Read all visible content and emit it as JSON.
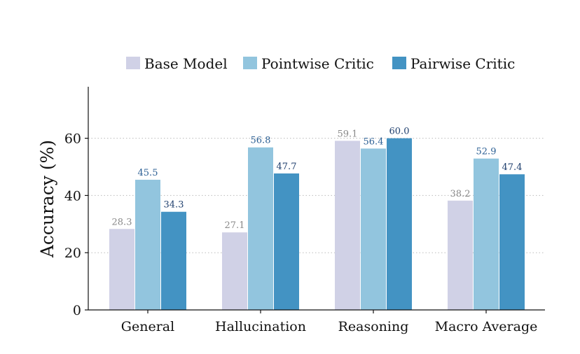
{
  "chart_data": {
    "type": "bar",
    "title": "",
    "xlabel": "",
    "ylabel": "Accuracy (%)",
    "ylim": [
      0,
      78
    ],
    "yticks": [
      0,
      20,
      40,
      60
    ],
    "grid": "horizontal dotted at 20, 40, 60",
    "legend_position": "top",
    "categories": [
      "General",
      "Hallucination",
      "Reasoning",
      "Macro Average"
    ],
    "series": [
      {
        "name": "Base Model",
        "values": [
          28.3,
          27.1,
          59.1,
          38.2
        ],
        "color": "#d0d1e6",
        "label_color": "#888888"
      },
      {
        "name": "Pointwise Critic",
        "values": [
          45.5,
          56.8,
          56.4,
          52.9
        ],
        "color": "#92c5de",
        "label_color": "#2b5f94"
      },
      {
        "name": "Pairwise Critic",
        "values": [
          34.3,
          47.7,
          60.0,
          47.4
        ],
        "color": "#4393c3",
        "label_color": "#1f3f6e"
      }
    ]
  }
}
